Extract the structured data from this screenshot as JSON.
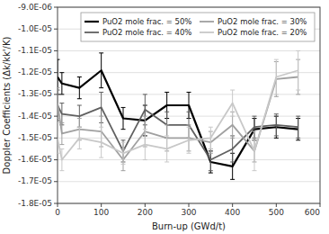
{
  "chart_data": {
    "type": "line",
    "xlabel": "Burn-up (GWd/t)",
    "ylabel": "Doppler Coefficients (Δk/kk'/K)",
    "xlim": [
      0,
      600
    ],
    "ylim": [
      -1.8e-05,
      -9e-06
    ],
    "xticks": [
      0,
      100,
      200,
      300,
      400,
      500,
      600
    ],
    "yticks": [
      {
        "value": -1.8e-05,
        "label": "-1.8E-05"
      },
      {
        "value": -1.7e-05,
        "label": "-1.7E-05"
      },
      {
        "value": -1.6e-05,
        "label": "-1.6E-05"
      },
      {
        "value": -1.5e-05,
        "label": "-1.5E-05"
      },
      {
        "value": -1.4e-05,
        "label": "-1.4E-05"
      },
      {
        "value": -1.3e-05,
        "label": "-1.3E-05"
      },
      {
        "value": -1.2e-05,
        "label": "-1.2E-05"
      },
      {
        "value": -1.1e-05,
        "label": "-1.1E-05"
      },
      {
        "value": -1e-05,
        "label": "-1.0E-05"
      },
      {
        "value": -9e-06,
        "label": "-9.0E-06"
      }
    ],
    "grid": true,
    "legend": "upper right",
    "x": [
      0,
      10,
      50,
      100,
      150,
      200,
      250,
      300,
      350,
      400,
      450,
      500,
      550
    ],
    "series": [
      {
        "name": "PuO2 mole frac. = 50%",
        "color": "#000000",
        "values": [
          -1.22e-05,
          -1.25e-05,
          -1.27e-05,
          -1.19e-05,
          -1.41e-05,
          -1.42e-05,
          -1.35e-05,
          -1.35e-05,
          -1.61e-05,
          -1.63e-05,
          -1.46e-05,
          -1.45e-05,
          -1.46e-05
        ],
        "yerr": [
          8e-07,
          5e-07,
          5e-07,
          8e-07,
          5e-07,
          7e-07,
          6e-07,
          6e-07,
          5e-07,
          6e-07,
          5e-07,
          5e-07,
          5e-07
        ]
      },
      {
        "name": "PuO2 mole frac. = 40%",
        "color": "#606060",
        "values": [
          -1.35e-05,
          -1.39e-05,
          -1.4e-05,
          -1.36e-05,
          -1.56e-05,
          -1.37e-05,
          -1.44e-05,
          -1.44e-05,
          -1.6e-05,
          -1.55e-05,
          -1.45e-05,
          -1.44e-05,
          -1.45e-05
        ],
        "yerr": [
          7e-07,
          5e-07,
          5e-07,
          7e-07,
          5e-07,
          7e-07,
          6e-07,
          6e-07,
          5e-07,
          6e-07,
          5e-07,
          5e-07,
          5e-07
        ]
      },
      {
        "name": "PuO2 mole frac. = 30%",
        "color": "#a0a0a0",
        "values": [
          -1.34e-05,
          -1.48e-05,
          -1.46e-05,
          -1.47e-05,
          -1.6e-05,
          -1.47e-05,
          -1.5e-05,
          -1.5e-05,
          -1.52e-05,
          -1.44e-05,
          -1.56e-05,
          -1.23e-05,
          -1.22e-05
        ],
        "yerr": [
          7e-07,
          5e-07,
          5e-07,
          7e-07,
          5e-07,
          7e-07,
          6e-07,
          6e-07,
          5e-07,
          6e-07,
          5e-07,
          8e-07,
          8e-07
        ]
      },
      {
        "name": "PuO2 mole frac. = 20%",
        "color": "#c8c8c8",
        "values": [
          -1.5e-05,
          -1.6e-05,
          -1.5e-05,
          -1.52e-05,
          -1.57e-05,
          -1.53e-05,
          -1.55e-05,
          -1.51e-05,
          -1.5e-05,
          -1.34e-05,
          -1.56e-05,
          -1.22e-05,
          -1.19e-05
        ],
        "yerr": [
          7e-07,
          5e-07,
          5e-07,
          7e-07,
          5e-07,
          7e-07,
          6e-07,
          6e-07,
          5e-07,
          6e-07,
          9e-07,
          8e-07,
          9e-07
        ]
      }
    ]
  }
}
